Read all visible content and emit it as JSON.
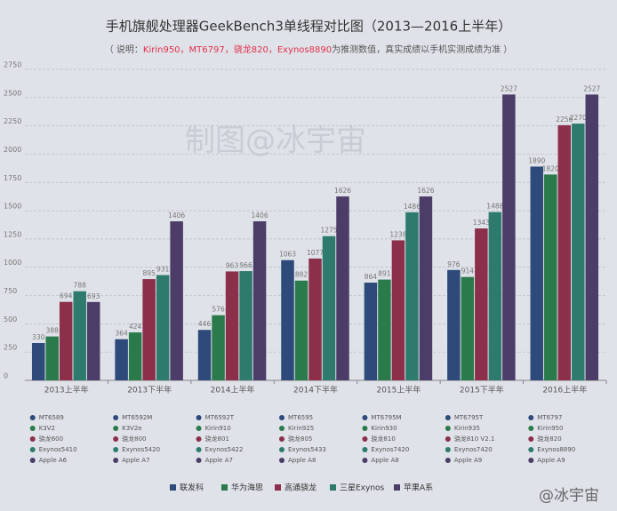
{
  "chart_data": {
    "type": "bar",
    "title": "手机旗舰处理器GeekBench3单线程对比图（2013—2016上半年）",
    "subtitle": [
      "（ 说明：",
      "Kirin950，MT6797，骁龙820，Exynos8890",
      "为推测数值，真实成绩以手机实测成绩为准 ）"
    ],
    "watermark": "制图@冰宇宙",
    "credit": "@冰宇宙",
    "categories": [
      "2013上半年",
      "2013下半年",
      "2014上半年",
      "2014下半年",
      "2015上半年",
      "2015下半年",
      "2016上半年"
    ],
    "series": [
      {
        "name": "联发科",
        "color": "#2d4a7a",
        "values": [
          330,
          364,
          446,
          1063,
          864,
          976,
          1890
        ],
        "chips": [
          "MT6589",
          "MT6592M",
          "MT6592T",
          "MT6595",
          "MT6795M",
          "MT6795T",
          "MT6797"
        ]
      },
      {
        "name": "华为海思",
        "color": "#2b7a4b",
        "values": [
          388,
          424,
          576,
          882,
          891,
          914,
          1820
        ],
        "chips": [
          "K3V2",
          "K3V2e",
          "Kirin910",
          "Kirin925",
          "Kirin930",
          "Kirin935",
          "Kirin950"
        ]
      },
      {
        "name": "高通骁龙",
        "color": "#8b2f4b",
        "values": [
          694,
          895,
          963,
          1077,
          1238,
          1343,
          2256
        ],
        "chips": [
          "骁龙600",
          "骁龙800",
          "骁龙801",
          "骁龙805",
          "骁龙810",
          "骁龙810 V2.1",
          "骁龙820"
        ]
      },
      {
        "name": "三星Exynos",
        "color": "#2e7b6e",
        "values": [
          788,
          931,
          966,
          1275,
          1486,
          1488,
          2270
        ],
        "chips": [
          "Exynos5410",
          "Exynos5420",
          "Exynos5422",
          "Exynos5433",
          "Exynos7420",
          "Exynos7420",
          "Exynos8890"
        ]
      },
      {
        "name": "苹果A系",
        "color": "#4b3c68",
        "values": [
          693,
          1406,
          1406,
          1626,
          1626,
          2527,
          2527
        ],
        "chips": [
          "Apple A6",
          "Apple A7",
          "Apple A7",
          "Apple A8",
          "Apple A8",
          "Apple A9",
          "Apple A9"
        ]
      }
    ],
    "ylim": [
      0,
      2750
    ],
    "yticks": [
      0,
      250,
      500,
      750,
      1000,
      1250,
      1500,
      1750,
      2000,
      2250,
      2500,
      2750
    ],
    "grid": true
  }
}
